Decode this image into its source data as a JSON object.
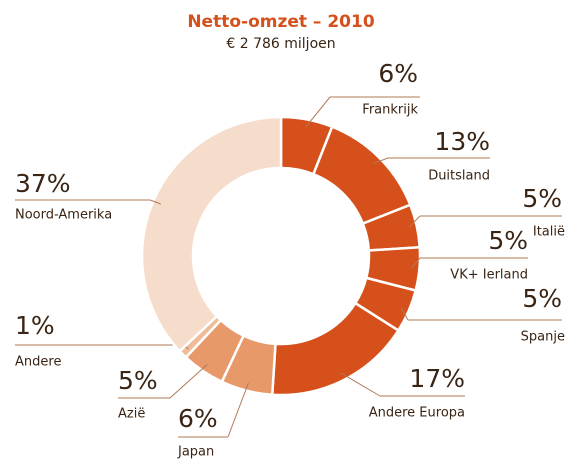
{
  "chart_data": {
    "type": "donut",
    "title": "Netto-omzet – 2010",
    "subtitle": "€ 2 786 miljoen",
    "categories": [
      "Frankrijk",
      "Duitsland",
      "Italië",
      "VK+ Ierland",
      "Spanje",
      "Andere Europa",
      "Japan",
      "Azië",
      "Andere",
      "Noord-Amerika"
    ],
    "values": [
      6,
      13,
      5,
      5,
      5,
      17,
      6,
      5,
      1,
      37
    ],
    "value_labels": [
      "6%",
      "13%",
      "5%",
      "5%",
      "5%",
      "17%",
      "6%",
      "5%",
      "1%",
      "37%"
    ],
    "colors": [
      "#d5501a",
      "#d5501a",
      "#d5501a",
      "#d5501a",
      "#d5501a",
      "#d5501a",
      "#e8996a",
      "#e8996a",
      "#f0bb98",
      "#f6dccb"
    ]
  }
}
